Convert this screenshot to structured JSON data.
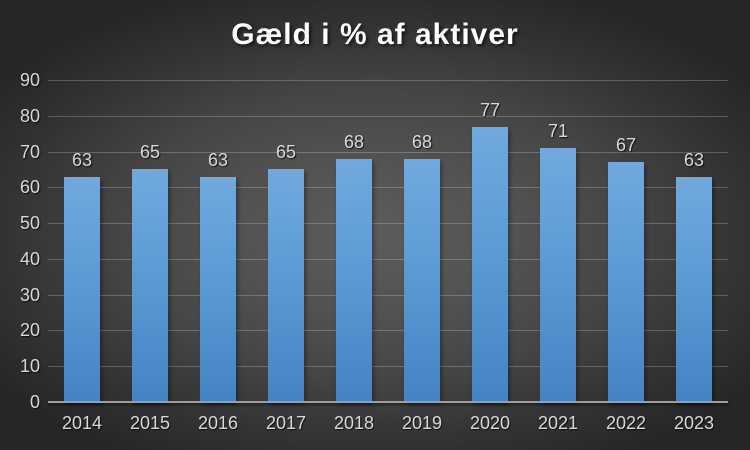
{
  "chart_data": {
    "type": "bar",
    "title": "Gæld i % af aktiver",
    "categories": [
      "2014",
      "2015",
      "2016",
      "2017",
      "2018",
      "2019",
      "2020",
      "2021",
      "2022",
      "2023"
    ],
    "values": [
      63,
      65,
      63,
      65,
      68,
      68,
      77,
      71,
      67,
      63
    ],
    "data_labels_shown": true,
    "xlabel": "",
    "ylabel": "",
    "ylim": [
      0,
      90
    ],
    "ytick_step": 10,
    "yticks": [
      0,
      10,
      20,
      30,
      40,
      50,
      60,
      70,
      80,
      90
    ],
    "grid": true,
    "legend": false,
    "colors": {
      "bar_top": "#71a9df",
      "bar_bottom": "#4583c4",
      "tick_label": "#d9d9d9",
      "data_label": "#d9d9d9",
      "title": "#ffffff",
      "gridline": "rgba(255,255,255,0.22)",
      "axis_line": "#9e9e9e",
      "background_center": "#5c5c5c",
      "background_edge": "#262626"
    }
  }
}
